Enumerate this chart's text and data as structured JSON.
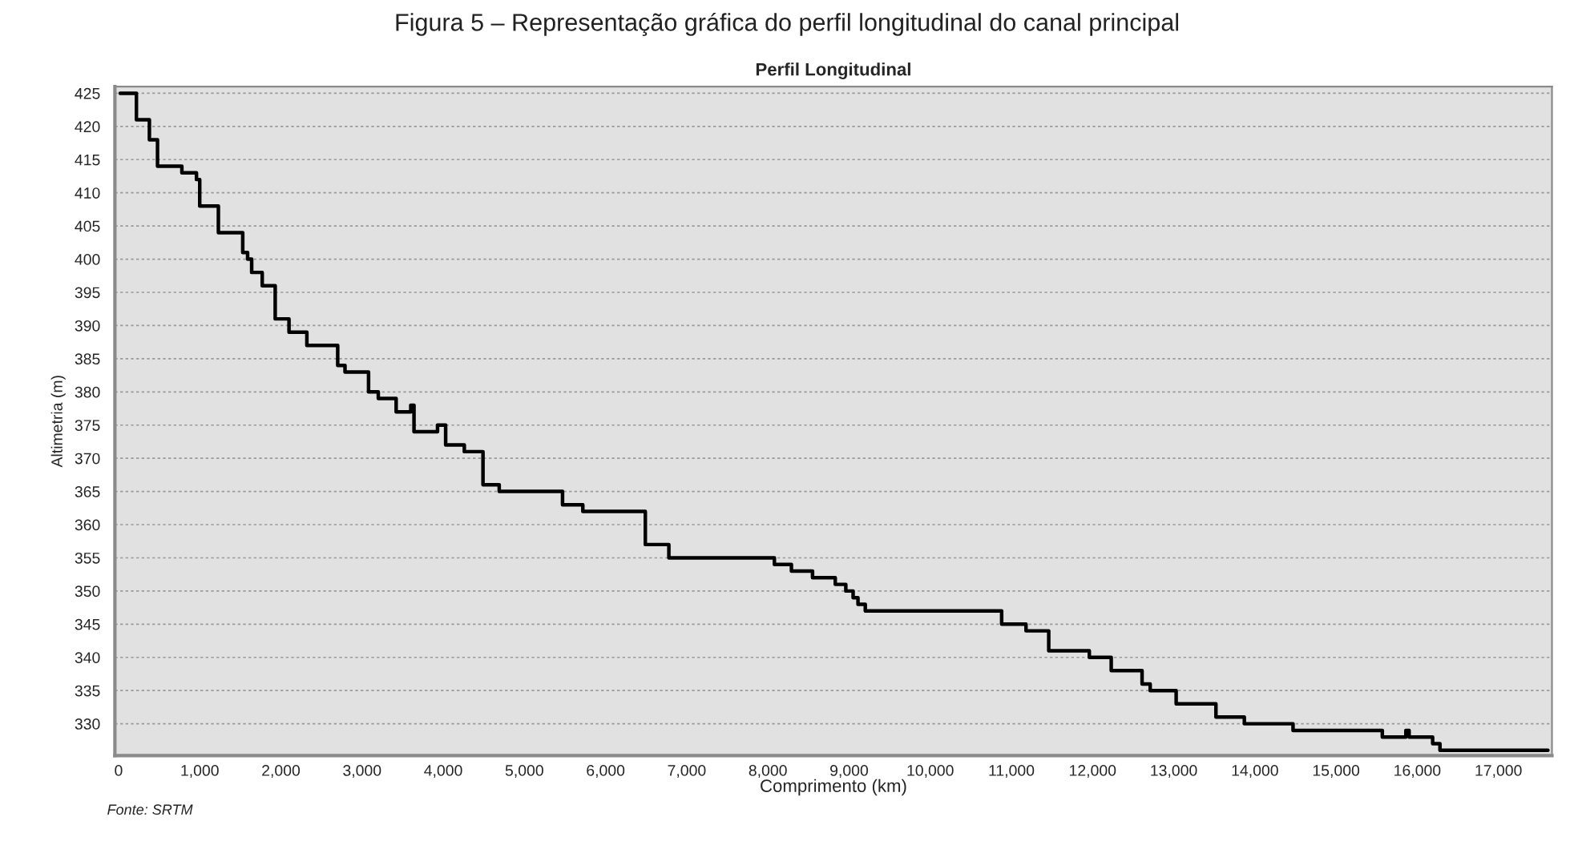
{
  "chart_data": {
    "type": "step",
    "title": "Perfil Longitudinal",
    "xlabel": "Comprimento (km)",
    "ylabel": "Altimetria (m)",
    "annotations": [
      "Figura 5 – Representação gráfica do perfil longitudinal do canal principal",
      "Fonte: SRTM"
    ],
    "x": [
      20,
      220,
      380,
      480,
      780,
      960,
      1000,
      1230,
      1530,
      1590,
      1640,
      1770,
      1930,
      2100,
      2320,
      2700,
      2790,
      3080,
      3200,
      3420,
      3600,
      3640,
      3930,
      4030,
      4260,
      4490,
      4690,
      5470,
      5720,
      6490,
      6780,
      8080,
      8290,
      8550,
      8830,
      8960,
      9050,
      9110,
      9200,
      10880,
      11180,
      11460,
      11960,
      12230,
      12610,
      12710,
      13030,
      13520,
      13870,
      14470,
      15570,
      15860,
      15900,
      16190,
      16280,
      17610
    ],
    "series": [
      {
        "color": "#000000",
        "values": [
          425,
          421,
          418,
          414,
          413,
          412,
          408,
          404,
          401,
          400,
          398,
          396,
          391,
          389,
          387,
          384,
          383,
          380,
          379,
          377,
          378,
          374,
          375,
          372,
          371,
          366,
          365,
          363,
          362,
          357,
          355,
          354,
          353,
          352,
          351,
          350,
          349,
          348,
          347,
          345,
          344,
          341,
          340,
          338,
          336,
          335,
          333,
          331,
          330,
          329,
          328,
          329,
          328,
          327,
          326,
          326
        ]
      }
    ],
    "xlim": [
      -45,
      17660
    ],
    "ylim": [
      325.2,
      426
    ],
    "xticks": [
      0,
      {
        "value": 1000,
        "label": "1,000"
      },
      {
        "value": 2000,
        "label": "2,000"
      },
      {
        "value": 3000,
        "label": "3,000"
      },
      {
        "value": 4000,
        "label": "4,000"
      },
      {
        "value": 5000,
        "label": "5,000"
      },
      {
        "value": 6000,
        "label": "6,000"
      },
      {
        "value": 7000,
        "label": "7,000"
      },
      {
        "value": 8000,
        "label": "8,000"
      },
      {
        "value": 9000,
        "label": "9,000"
      },
      {
        "value": 10000,
        "label": "10,000"
      },
      {
        "value": 11000,
        "label": "11,000"
      },
      {
        "value": 12000,
        "label": "12,000"
      },
      {
        "value": 13000,
        "label": "13,000"
      },
      {
        "value": 14000,
        "label": "14,000"
      },
      {
        "value": 15000,
        "label": "15,000"
      },
      {
        "value": 16000,
        "label": "16,000"
      },
      {
        "value": 17000,
        "label": "17,000"
      }
    ],
    "yticks": [
      330,
      335,
      340,
      345,
      350,
      355,
      360,
      365,
      370,
      375,
      380,
      385,
      390,
      395,
      400,
      405,
      410,
      415,
      420,
      425
    ],
    "grid": "y",
    "legend": false,
    "line_style": "solid",
    "marker": "none"
  }
}
